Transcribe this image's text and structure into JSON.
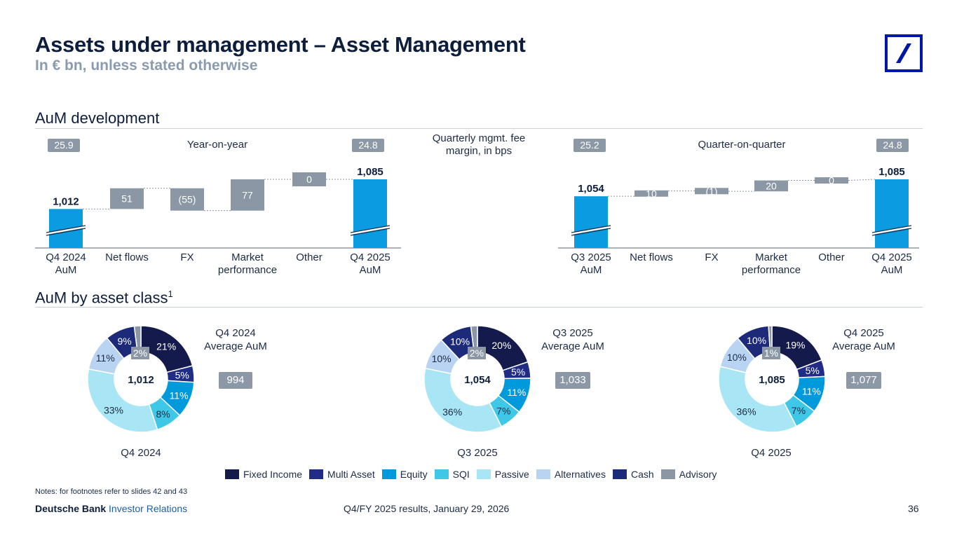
{
  "header": {
    "title": "Assets under management – Asset Management",
    "subtitle": "In € bn, unless stated otherwise"
  },
  "sections": {
    "development": "AuM development",
    "asset_class": "AuM by asset class",
    "asset_class_sup": "1"
  },
  "middle_label": "Quarterly mgmt. fee margin, in bps",
  "colors": {
    "fixed_income": "#151a4c",
    "multi_asset": "#212c86",
    "equity": "#0099db",
    "sqi": "#3ec7e6",
    "passive": "#a9e6f5",
    "alternatives": "#b9d3f2",
    "cash": "#1d2a7a",
    "advisory": "#8b97a5",
    "bar_blue": "#0a9be0",
    "step_grey": "#8b97a5"
  },
  "chart_data": [
    {
      "type": "bar",
      "subtype": "waterfall",
      "title": "Year-on-year",
      "badge_left": "25.9",
      "badge_right": "24.8",
      "categories": [
        "Q4 2024 AuM",
        "Net flows",
        "FX",
        "Market performance",
        "Other",
        "Q4 2025 AuM"
      ],
      "category_lines": [
        [
          "Q4 2024",
          "AuM"
        ],
        [
          "Net flows"
        ],
        [
          "FX"
        ],
        [
          "Market",
          "performance"
        ],
        [
          "Other"
        ],
        [
          "Q4 2025",
          "AuM"
        ]
      ],
      "values": [
        1012,
        51,
        -55,
        77,
        0,
        1085
      ],
      "labels": [
        "1,012",
        "51",
        "(55)",
        "77",
        "0",
        "1,085"
      ],
      "roles": [
        "total",
        "step",
        "step",
        "step",
        "step",
        "total"
      ],
      "axis_break": true
    },
    {
      "type": "bar",
      "subtype": "waterfall",
      "title": "Quarter-on-quarter",
      "badge_left": "25.2",
      "badge_right": "24.8",
      "categories": [
        "Q3 2025 AuM",
        "Net flows",
        "FX",
        "Market performance",
        "Other",
        "Q4 2025 AuM"
      ],
      "category_lines": [
        [
          "Q3 2025",
          "AuM"
        ],
        [
          "Net flows"
        ],
        [
          "FX"
        ],
        [
          "Market",
          "performance"
        ],
        [
          "Other"
        ],
        [
          "Q4 2025",
          "AuM"
        ]
      ],
      "values": [
        1054,
        10,
        -1,
        20,
        0,
        1085
      ],
      "labels": [
        "1,054",
        "10",
        "(1)",
        "20",
        "0",
        "1,085"
      ],
      "roles": [
        "total",
        "step",
        "step",
        "step",
        "step",
        "total"
      ],
      "axis_break": true
    },
    {
      "type": "pie",
      "subtype": "donut",
      "title": "Q4 2024",
      "center_label": "1,012",
      "side_label": [
        "Q4 2024",
        "Average AuM"
      ],
      "side_badge": "994",
      "categories": [
        "Fixed Income",
        "Multi Asset",
        "Equity",
        "SQI",
        "Passive",
        "Alternatives",
        "Cash",
        "Advisory"
      ],
      "values": [
        21,
        5,
        11,
        8,
        33,
        11,
        9,
        2
      ],
      "labels": [
        "21%",
        "5%",
        "11%",
        "8%",
        "33%",
        "11%",
        "9%",
        "2%"
      ]
    },
    {
      "type": "pie",
      "subtype": "donut",
      "title": "Q3 2025",
      "center_label": "1,054",
      "side_label": [
        "Q3 2025",
        "Average AuM"
      ],
      "side_badge": "1,033",
      "categories": [
        "Fixed Income",
        "Multi Asset",
        "Equity",
        "SQI",
        "Passive",
        "Alternatives",
        "Cash",
        "Advisory"
      ],
      "values": [
        20,
        5,
        11,
        7,
        36,
        10,
        10,
        2
      ],
      "labels": [
        "20%",
        "5%",
        "11%",
        "7%",
        "36%",
        "10%",
        "10%",
        "2%"
      ]
    },
    {
      "type": "pie",
      "subtype": "donut",
      "title": "Q4 2025",
      "center_label": "1,085",
      "side_label": [
        "Q4 2025",
        "Average AuM"
      ],
      "side_badge": "1,077",
      "categories": [
        "Fixed Income",
        "Multi Asset",
        "Equity",
        "SQI",
        "Passive",
        "Alternatives",
        "Cash",
        "Advisory"
      ],
      "values": [
        19,
        5,
        11,
        7,
        36,
        10,
        10,
        1
      ],
      "labels": [
        "19%",
        "5%",
        "11%",
        "7%",
        "36%",
        "10%",
        "10%",
        "1%"
      ]
    }
  ],
  "legend": [
    "Fixed Income",
    "Multi Asset",
    "Equity",
    "SQI",
    "Passive",
    "Alternatives",
    "Cash",
    "Advisory"
  ],
  "footer": {
    "notes": "Notes: for footnotes refer to slides 42 and 43",
    "brand_bold": "Deutsche Bank",
    "brand_rest": "Investor Relations",
    "center": "Q4/FY 2025 results, January 29, 2026",
    "page": "36"
  }
}
